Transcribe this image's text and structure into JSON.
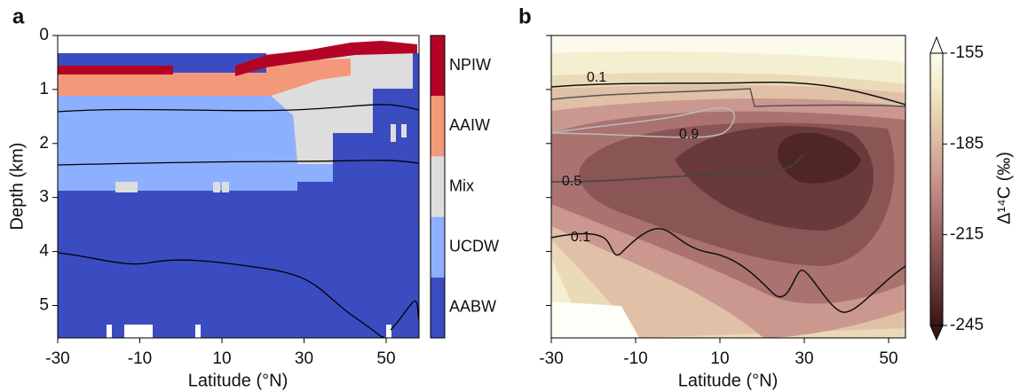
{
  "chart_data": [
    {
      "type": "category_map",
      "panel_label": "a",
      "x_label": "Latitude (°N)",
      "y_label": "Depth (km)",
      "xlim": [
        -30,
        58
      ],
      "xticks": [
        -30,
        -10,
        10,
        30,
        50
      ],
      "ylim": [
        0,
        5.6
      ],
      "yticks": [
        0,
        1,
        2,
        3,
        4,
        5
      ],
      "legend": [
        {
          "name": "NPIW",
          "color": "#b40426"
        },
        {
          "name": "AAIW",
          "color": "#f4987a"
        },
        {
          "name": "Mix",
          "color": "#dddddd"
        },
        {
          "name": "UCDW",
          "color": "#8db0fe"
        },
        {
          "name": "AABW",
          "color": "#3b4cc0"
        }
      ]
    },
    {
      "type": "contour",
      "panel_label": "b",
      "x_label": "Latitude (°N)",
      "xlim": [
        -30,
        54
      ],
      "xticks": [
        -30,
        -10,
        10,
        30,
        50
      ],
      "ylim": [
        0,
        5.6
      ],
      "yticks": [
        0,
        1,
        2,
        3,
        4,
        5
      ],
      "contour_labels": [
        0.1,
        0.9,
        0.5,
        0.1
      ],
      "colorbar": {
        "label": "Δ¹⁴C (‰)",
        "clim": [
          -245,
          -155
        ],
        "ticks": [
          -155,
          -185,
          -215,
          -245
        ],
        "colors": [
          "#fdfdf2",
          "#efe9c2",
          "#e2c4a8",
          "#cf9d93",
          "#b17a77",
          "#8c5656",
          "#643636",
          "#3a1616"
        ]
      }
    }
  ]
}
